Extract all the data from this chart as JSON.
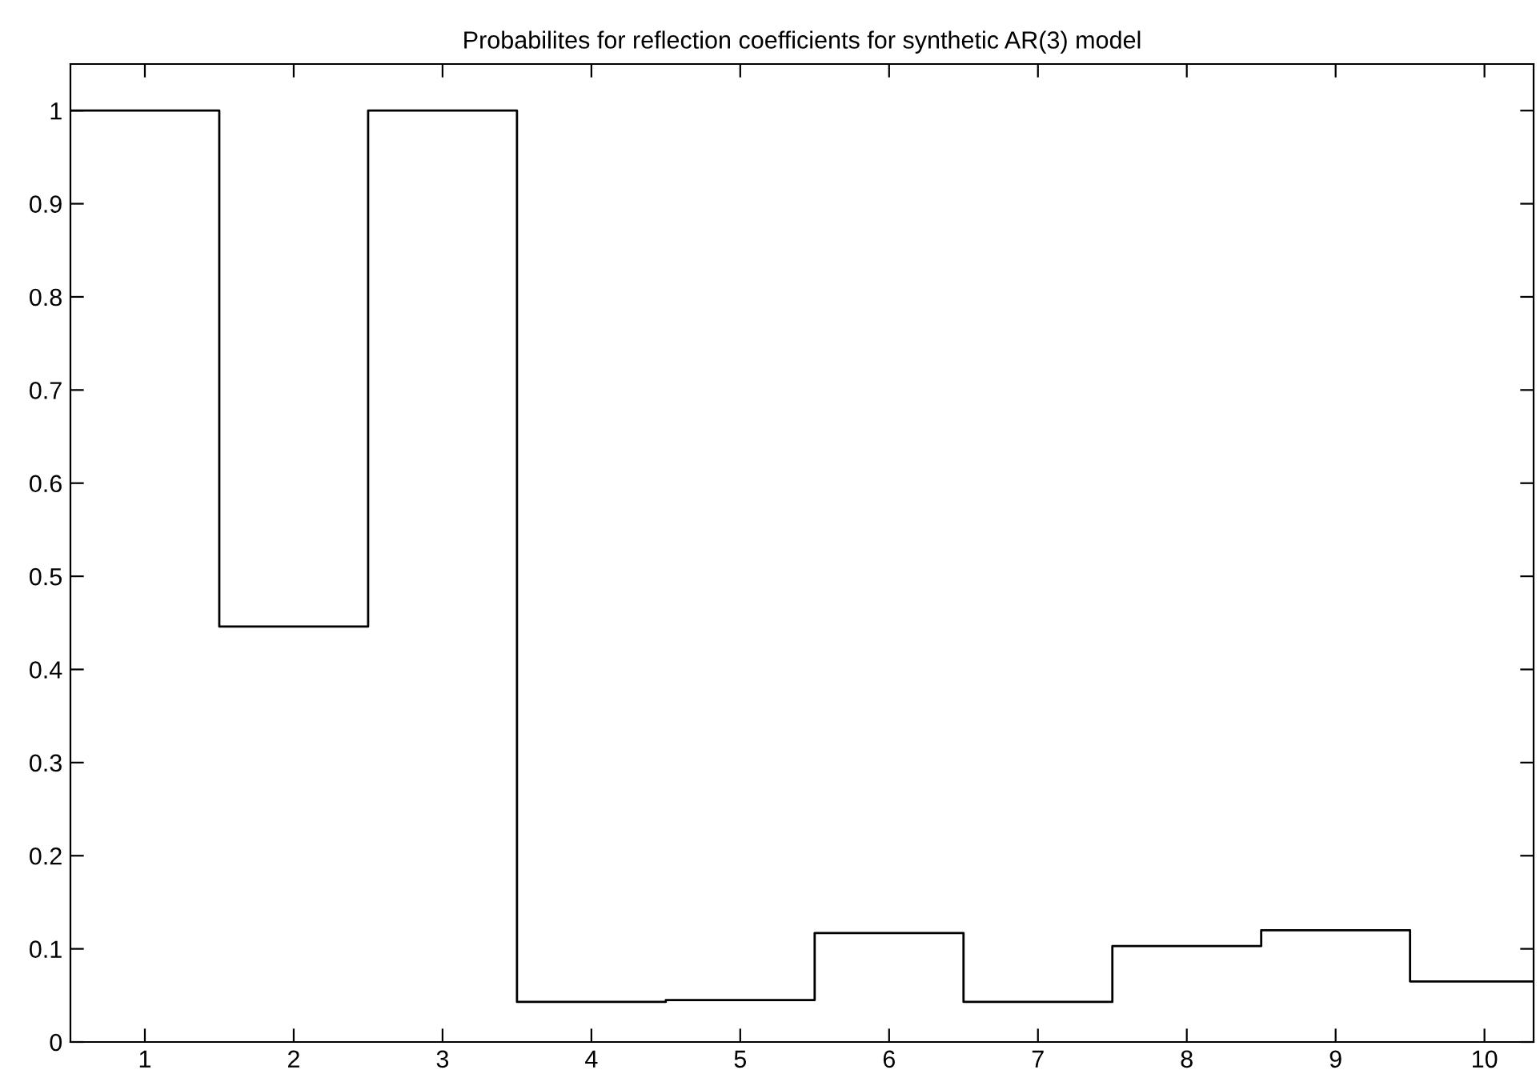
{
  "chart_data": {
    "type": "step",
    "title": "Probabilites for reflection coefficients for synthetic AR(3) model",
    "x": [
      1,
      2,
      3,
      4,
      5,
      6,
      7,
      8,
      9,
      10
    ],
    "values": [
      1,
      0.446,
      1,
      0.043,
      0.045,
      0.117,
      0.043,
      0.103,
      0.12,
      0.065
    ],
    "color": "#000000",
    "xlim": [
      0.5,
      10.33
    ],
    "xticks": [
      1,
      2,
      3,
      4,
      5,
      6,
      7,
      8,
      9,
      10
    ],
    "ylim": [
      0,
      1.05
    ],
    "yticks": [
      0,
      0.1,
      0.2,
      0.3,
      0.4,
      0.5,
      0.6,
      0.7,
      0.8,
      0.9,
      1
    ],
    "grid": false,
    "legend": false
  }
}
